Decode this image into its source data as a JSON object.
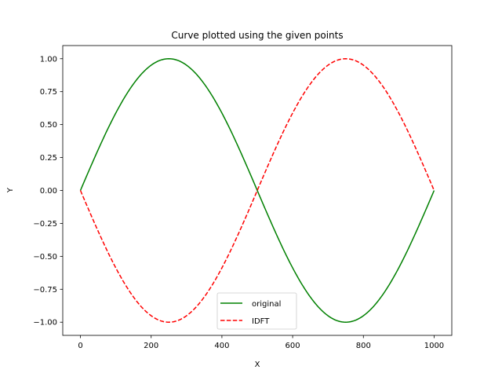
{
  "chart_data": {
    "type": "line",
    "title": "Curve plotted using the given points",
    "xlabel": "X",
    "ylabel": "Y",
    "xlim": [
      -50,
      1050
    ],
    "ylim": [
      -1.1,
      1.1
    ],
    "xticks": [
      0,
      200,
      400,
      600,
      800,
      1000
    ],
    "yticks": [
      1.0,
      0.75,
      0.5,
      0.25,
      0.0,
      -0.25,
      -0.5,
      -0.75,
      -1.0
    ],
    "xtick_labels": [
      "0",
      "200",
      "400",
      "600",
      "800",
      "1000"
    ],
    "ytick_labels": [
      "1.00",
      "0.75",
      "0.50",
      "0.25",
      "0.00",
      "−0.25",
      "−0.50",
      "−0.75",
      "−1.00"
    ],
    "grid": false,
    "legend_position": "lower-center",
    "x": [
      0,
      50,
      100,
      150,
      200,
      250,
      300,
      350,
      400,
      450,
      500,
      550,
      600,
      650,
      700,
      750,
      800,
      850,
      900,
      950,
      1000
    ],
    "series": [
      {
        "name": "original",
        "color": "#008000",
        "style": "solid",
        "values": [
          0.0,
          0.309,
          0.588,
          0.809,
          0.951,
          1.0,
          0.951,
          0.809,
          0.588,
          0.309,
          0.0,
          -0.309,
          -0.588,
          -0.809,
          -0.951,
          -1.0,
          -0.951,
          -0.809,
          -0.588,
          -0.309,
          0.0
        ]
      },
      {
        "name": "IDFT",
        "color": "#ff0000",
        "style": "dashed",
        "values": [
          0.0,
          -0.309,
          -0.588,
          -0.809,
          -0.951,
          -1.0,
          -0.951,
          -0.809,
          -0.588,
          -0.309,
          0.0,
          0.309,
          0.588,
          0.809,
          0.951,
          1.0,
          0.951,
          0.809,
          0.588,
          0.309,
          0.0
        ]
      }
    ]
  }
}
